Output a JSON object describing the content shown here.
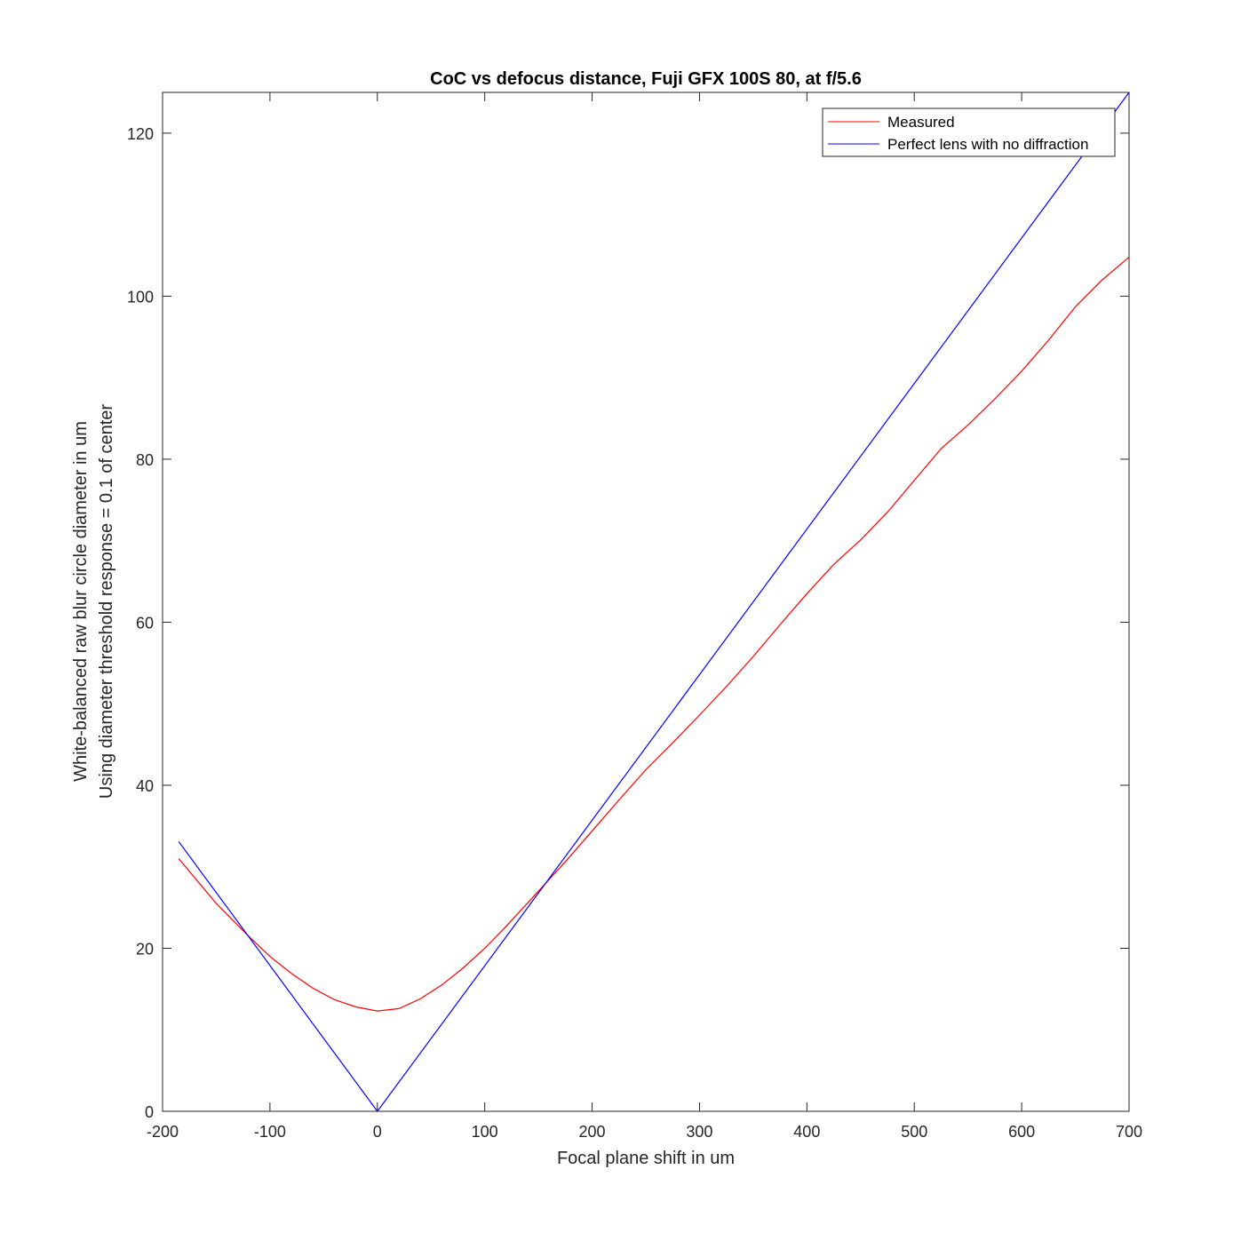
{
  "chart_data": {
    "type": "line",
    "title": "CoC vs defocus distance, Fuji GFX 100S 80, at f/5.6",
    "xlabel": "Focal plane shift in um",
    "ylabel_lines": [
      "White-balanced raw blur circle diameter in um",
      "Using diameter threshold response = 0.1 of center"
    ],
    "xlim": [
      -200,
      700
    ],
    "ylim": [
      0,
      125
    ],
    "xticks": [
      -200,
      -100,
      0,
      100,
      200,
      300,
      400,
      500,
      600,
      700
    ],
    "yticks": [
      0,
      20,
      40,
      60,
      80,
      100,
      120
    ],
    "xtick_labels": [
      "-200",
      "-100",
      "0",
      "100",
      "200",
      "300",
      "400",
      "500",
      "600",
      "700"
    ],
    "ytick_labels": [
      "0",
      "20",
      "40",
      "60",
      "80",
      "100",
      "120"
    ],
    "grid": false,
    "legend_position": "top-right",
    "series": [
      {
        "name": "Measured",
        "color": "#ff0000",
        "x": [
          -185,
          -150,
          -120,
          -100,
          -80,
          -60,
          -40,
          -20,
          0,
          20,
          40,
          60,
          80,
          100,
          120,
          150,
          175,
          200,
          225,
          250,
          275,
          300,
          325,
          350,
          375,
          400,
          425,
          450,
          475,
          500,
          525,
          550,
          575,
          600,
          625,
          650,
          675,
          700
        ],
        "y": [
          31.0,
          25.5,
          21.5,
          19.0,
          16.9,
          15.1,
          13.7,
          12.8,
          12.3,
          12.6,
          13.8,
          15.5,
          17.6,
          20.0,
          22.7,
          27.0,
          30.6,
          34.4,
          38.2,
          41.9,
          45.2,
          48.6,
          52.1,
          55.8,
          59.7,
          63.5,
          67.1,
          70.1,
          73.5,
          77.4,
          81.3,
          84.2,
          87.4,
          90.8,
          94.6,
          98.7,
          102.0,
          104.8
        ]
      },
      {
        "name": "Perfect lens with no diffraction",
        "color": "#0000ff",
        "x": [
          -185,
          0,
          700
        ],
        "y": [
          33.1,
          0,
          125
        ]
      }
    ]
  }
}
